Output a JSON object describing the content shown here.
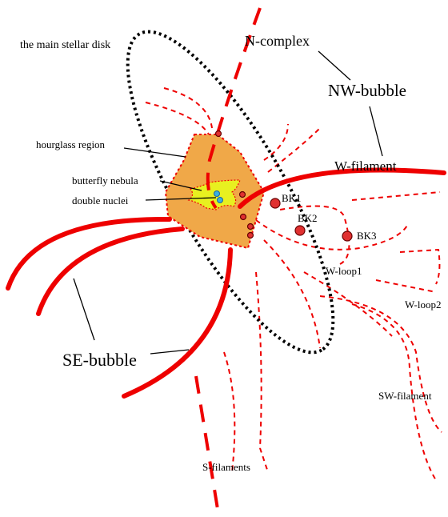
{
  "labels": {
    "stellar_disk": "the main stellar disk",
    "n_complex": "N-complex",
    "nw_bubble": "NW-bubble",
    "hourglass": "hourglass region",
    "w_filament": "W-filament",
    "butterfly": "butterfly nebula",
    "double_nuclei": "double nuclei",
    "bk1": "BK1",
    "bk2": "BK2",
    "bk3": "BK3",
    "w_loop1": "W-loop1",
    "w_loop2": "W-loop2",
    "se_bubble": "SE-bubble",
    "sw_filament": "SW-filament",
    "s_filaments": "S-filaments"
  }
}
